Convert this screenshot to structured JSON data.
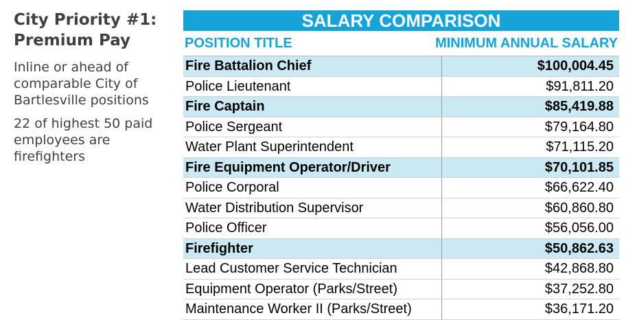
{
  "sidebar": {
    "title": "City Priority #1: Premium Pay",
    "paragraphs": [
      "Inline or ahead of comparable City of Bartlesville positions",
      "22 of highest 50 paid employees are firefighters"
    ]
  },
  "table": {
    "title": "SALARY COMPARISON",
    "columns": [
      "POSITION TITLE",
      "MINIMUM ANNUAL SALARY"
    ],
    "rows": [
      {
        "title": "Fire Battalion Chief",
        "salary": "$100,004.45",
        "highlight": true
      },
      {
        "title": "Police Lieutenant",
        "salary": "$91,811.20",
        "highlight": false
      },
      {
        "title": "Fire Captain",
        "salary": "$85,419.88",
        "highlight": true
      },
      {
        "title": "Police Sergeant",
        "salary": "$79,164.80",
        "highlight": false
      },
      {
        "title": "Water Plant Superintendent",
        "salary": "$71,115.20",
        "highlight": false
      },
      {
        "title": "Fire Equipment Operator/Driver",
        "salary": "$70,101.85",
        "highlight": true
      },
      {
        "title": "Police Corporal",
        "salary": "$66,622.40",
        "highlight": false
      },
      {
        "title": "Water Distribution Supervisor",
        "salary": "$60,860.80",
        "highlight": false
      },
      {
        "title": "Police Officer",
        "salary": "$56,056.00",
        "highlight": false
      },
      {
        "title": "Firefighter",
        "salary": "$50,862.63",
        "highlight": true
      },
      {
        "title": "Lead Customer Service Technician",
        "salary": "$42,868.80",
        "highlight": false
      },
      {
        "title": "Equipment Operator (Parks/Street)",
        "salary": "$37,252.80",
        "highlight": false
      },
      {
        "title": "Maintenance Worker II (Parks/Street)",
        "salary": "$36,171.20",
        "highlight": false
      }
    ]
  }
}
